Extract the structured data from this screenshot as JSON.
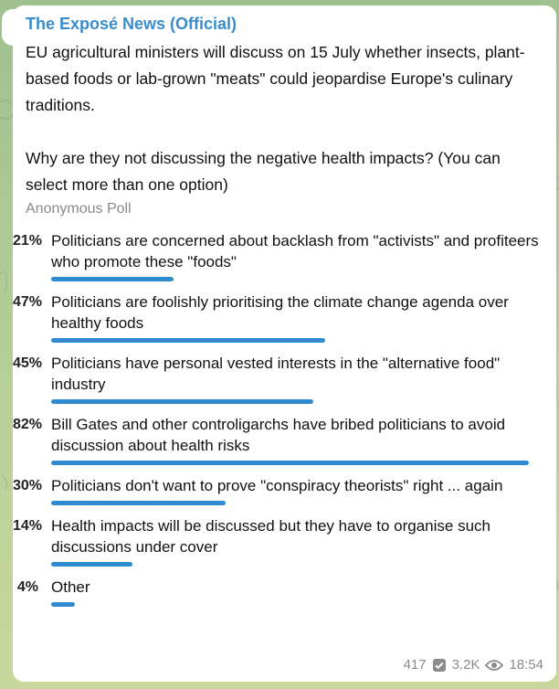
{
  "channel": {
    "name": "The Exposé News (Official)"
  },
  "message": {
    "text": "EU agricultural ministers will discuss on 15 July whether insects, plant-based foods or lab-grown \"meats\" could jeopardise Europe's culinary traditions.\n\nWhy are they not discussing the negative health impacts? (You can select more than one option)"
  },
  "poll": {
    "type_label": "Anonymous Poll",
    "accent_color": "#2f8ad0",
    "options": [
      {
        "percent_label": "21%",
        "percent": 21,
        "text": "Politicians are concerned about backlash from \"activists\" and profiteers who promote these \"foods\""
      },
      {
        "percent_label": "47%",
        "percent": 47,
        "text": "Politicians are foolishly prioritising the climate change agenda over healthy foods"
      },
      {
        "percent_label": "45%",
        "percent": 45,
        "text": "Politicians have personal vested interests in the \"alternative food\" industry"
      },
      {
        "percent_label": "82%",
        "percent": 82,
        "text": "Bill Gates and other controligarchs have bribed politicians to avoid discussion about health risks"
      },
      {
        "percent_label": "30%",
        "percent": 30,
        "text": "Politicians don't want to prove \"conspiracy theorists\" right ... again"
      },
      {
        "percent_label": "14%",
        "percent": 14,
        "text": "Health impacts will be discussed but they have to organise such discussions under cover"
      },
      {
        "percent_label": "4%",
        "percent": 4,
        "text": "Other"
      }
    ]
  },
  "meta": {
    "votes": "417",
    "views": "3.2K",
    "time": "18:54",
    "votes_icon": "check-box-icon",
    "views_icon": "eye-icon"
  }
}
